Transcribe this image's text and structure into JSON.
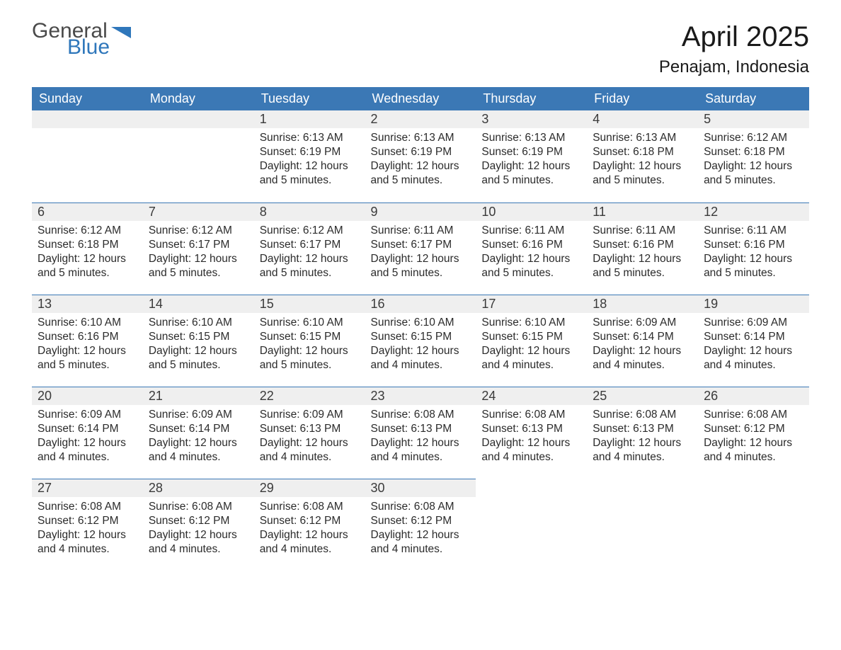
{
  "logo": {
    "text1": "General",
    "text2": "Blue",
    "shape_color": "#2f77bb",
    "text1_color": "#4a4a4a",
    "text2_color": "#2f77bb"
  },
  "title": "April 2025",
  "location": "Penajam, Indonesia",
  "colors": {
    "header_bg": "#3b78b5",
    "header_text": "#ffffff",
    "daynum_bg": "#efefef",
    "row_border": "#3b78b5",
    "body_text": "#2b2b2b",
    "page_bg": "#ffffff"
  },
  "typography": {
    "title_fontsize": 40,
    "location_fontsize": 24,
    "weekday_fontsize": 18,
    "daynum_fontsize": 18,
    "content_fontsize": 15.5,
    "font_family": "Arial"
  },
  "layout": {
    "columns": 7,
    "rows": 5
  },
  "weekdays": [
    "Sunday",
    "Monday",
    "Tuesday",
    "Wednesday",
    "Thursday",
    "Friday",
    "Saturday"
  ],
  "weeks": [
    [
      {
        "day": "",
        "sunrise": "",
        "sunset": "",
        "daylight": ""
      },
      {
        "day": "",
        "sunrise": "",
        "sunset": "",
        "daylight": ""
      },
      {
        "day": "1",
        "sunrise": "Sunrise: 6:13 AM",
        "sunset": "Sunset: 6:19 PM",
        "daylight": "Daylight: 12 hours and 5 minutes."
      },
      {
        "day": "2",
        "sunrise": "Sunrise: 6:13 AM",
        "sunset": "Sunset: 6:19 PM",
        "daylight": "Daylight: 12 hours and 5 minutes."
      },
      {
        "day": "3",
        "sunrise": "Sunrise: 6:13 AM",
        "sunset": "Sunset: 6:19 PM",
        "daylight": "Daylight: 12 hours and 5 minutes."
      },
      {
        "day": "4",
        "sunrise": "Sunrise: 6:13 AM",
        "sunset": "Sunset: 6:18 PM",
        "daylight": "Daylight: 12 hours and 5 minutes."
      },
      {
        "day": "5",
        "sunrise": "Sunrise: 6:12 AM",
        "sunset": "Sunset: 6:18 PM",
        "daylight": "Daylight: 12 hours and 5 minutes."
      }
    ],
    [
      {
        "day": "6",
        "sunrise": "Sunrise: 6:12 AM",
        "sunset": "Sunset: 6:18 PM",
        "daylight": "Daylight: 12 hours and 5 minutes."
      },
      {
        "day": "7",
        "sunrise": "Sunrise: 6:12 AM",
        "sunset": "Sunset: 6:17 PM",
        "daylight": "Daylight: 12 hours and 5 minutes."
      },
      {
        "day": "8",
        "sunrise": "Sunrise: 6:12 AM",
        "sunset": "Sunset: 6:17 PM",
        "daylight": "Daylight: 12 hours and 5 minutes."
      },
      {
        "day": "9",
        "sunrise": "Sunrise: 6:11 AM",
        "sunset": "Sunset: 6:17 PM",
        "daylight": "Daylight: 12 hours and 5 minutes."
      },
      {
        "day": "10",
        "sunrise": "Sunrise: 6:11 AM",
        "sunset": "Sunset: 6:16 PM",
        "daylight": "Daylight: 12 hours and 5 minutes."
      },
      {
        "day": "11",
        "sunrise": "Sunrise: 6:11 AM",
        "sunset": "Sunset: 6:16 PM",
        "daylight": "Daylight: 12 hours and 5 minutes."
      },
      {
        "day": "12",
        "sunrise": "Sunrise: 6:11 AM",
        "sunset": "Sunset: 6:16 PM",
        "daylight": "Daylight: 12 hours and 5 minutes."
      }
    ],
    [
      {
        "day": "13",
        "sunrise": "Sunrise: 6:10 AM",
        "sunset": "Sunset: 6:16 PM",
        "daylight": "Daylight: 12 hours and 5 minutes."
      },
      {
        "day": "14",
        "sunrise": "Sunrise: 6:10 AM",
        "sunset": "Sunset: 6:15 PM",
        "daylight": "Daylight: 12 hours and 5 minutes."
      },
      {
        "day": "15",
        "sunrise": "Sunrise: 6:10 AM",
        "sunset": "Sunset: 6:15 PM",
        "daylight": "Daylight: 12 hours and 5 minutes."
      },
      {
        "day": "16",
        "sunrise": "Sunrise: 6:10 AM",
        "sunset": "Sunset: 6:15 PM",
        "daylight": "Daylight: 12 hours and 4 minutes."
      },
      {
        "day": "17",
        "sunrise": "Sunrise: 6:10 AM",
        "sunset": "Sunset: 6:15 PM",
        "daylight": "Daylight: 12 hours and 4 minutes."
      },
      {
        "day": "18",
        "sunrise": "Sunrise: 6:09 AM",
        "sunset": "Sunset: 6:14 PM",
        "daylight": "Daylight: 12 hours and 4 minutes."
      },
      {
        "day": "19",
        "sunrise": "Sunrise: 6:09 AM",
        "sunset": "Sunset: 6:14 PM",
        "daylight": "Daylight: 12 hours and 4 minutes."
      }
    ],
    [
      {
        "day": "20",
        "sunrise": "Sunrise: 6:09 AM",
        "sunset": "Sunset: 6:14 PM",
        "daylight": "Daylight: 12 hours and 4 minutes."
      },
      {
        "day": "21",
        "sunrise": "Sunrise: 6:09 AM",
        "sunset": "Sunset: 6:14 PM",
        "daylight": "Daylight: 12 hours and 4 minutes."
      },
      {
        "day": "22",
        "sunrise": "Sunrise: 6:09 AM",
        "sunset": "Sunset: 6:13 PM",
        "daylight": "Daylight: 12 hours and 4 minutes."
      },
      {
        "day": "23",
        "sunrise": "Sunrise: 6:08 AM",
        "sunset": "Sunset: 6:13 PM",
        "daylight": "Daylight: 12 hours and 4 minutes."
      },
      {
        "day": "24",
        "sunrise": "Sunrise: 6:08 AM",
        "sunset": "Sunset: 6:13 PM",
        "daylight": "Daylight: 12 hours and 4 minutes."
      },
      {
        "day": "25",
        "sunrise": "Sunrise: 6:08 AM",
        "sunset": "Sunset: 6:13 PM",
        "daylight": "Daylight: 12 hours and 4 minutes."
      },
      {
        "day": "26",
        "sunrise": "Sunrise: 6:08 AM",
        "sunset": "Sunset: 6:12 PM",
        "daylight": "Daylight: 12 hours and 4 minutes."
      }
    ],
    [
      {
        "day": "27",
        "sunrise": "Sunrise: 6:08 AM",
        "sunset": "Sunset: 6:12 PM",
        "daylight": "Daylight: 12 hours and 4 minutes."
      },
      {
        "day": "28",
        "sunrise": "Sunrise: 6:08 AM",
        "sunset": "Sunset: 6:12 PM",
        "daylight": "Daylight: 12 hours and 4 minutes."
      },
      {
        "day": "29",
        "sunrise": "Sunrise: 6:08 AM",
        "sunset": "Sunset: 6:12 PM",
        "daylight": "Daylight: 12 hours and 4 minutes."
      },
      {
        "day": "30",
        "sunrise": "Sunrise: 6:08 AM",
        "sunset": "Sunset: 6:12 PM",
        "daylight": "Daylight: 12 hours and 4 minutes."
      },
      {
        "day": "",
        "sunrise": "",
        "sunset": "",
        "daylight": ""
      },
      {
        "day": "",
        "sunrise": "",
        "sunset": "",
        "daylight": ""
      },
      {
        "day": "",
        "sunrise": "",
        "sunset": "",
        "daylight": ""
      }
    ]
  ]
}
